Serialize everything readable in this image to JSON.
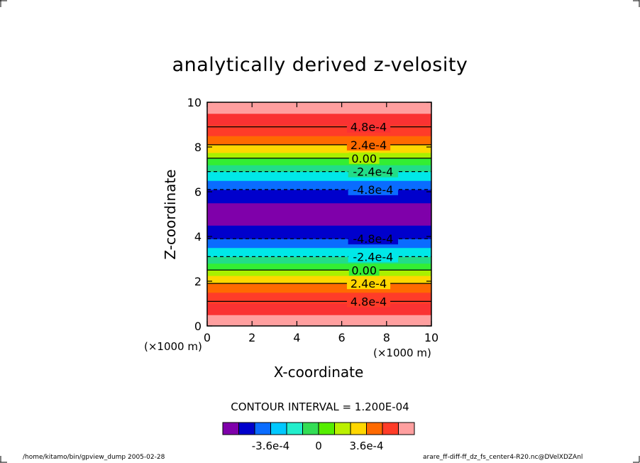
{
  "chart_data": {
    "type": "contour",
    "title": "analytically derived z-velosity",
    "xlabel": "X-coordinate",
    "ylabel": "Z-coordinate",
    "x_unit": "(×1000 m)",
    "y_unit": "(×1000 m)",
    "xlim": [
      0,
      10
    ],
    "ylim": [
      0,
      10
    ],
    "xticks": [
      "0",
      "2",
      "4",
      "6",
      "8",
      "10"
    ],
    "yticks": [
      "0",
      "2",
      "4",
      "6",
      "8",
      "10"
    ],
    "contour_interval_text": "CONTOUR INTERVAL = 1.200E-04",
    "bands": [
      {
        "z0": 0.0,
        "z1": 0.5,
        "color": "#ff9f9f"
      },
      {
        "z0": 0.5,
        "z1": 1.0,
        "color": "#fa3232"
      },
      {
        "z0": 1.0,
        "z1": 1.5,
        "color": "#ff3c28"
      },
      {
        "z0": 1.5,
        "z1": 1.9,
        "color": "#ff6a00"
      },
      {
        "z0": 1.9,
        "z1": 2.25,
        "color": "#ffd700"
      },
      {
        "z0": 2.25,
        "z1": 2.5,
        "color": "#aaf000"
      },
      {
        "z0": 2.5,
        "z1": 2.8,
        "color": "#33ee33"
      },
      {
        "z0": 2.8,
        "z1": 3.1,
        "color": "#22dd88"
      },
      {
        "z0": 3.1,
        "z1": 3.5,
        "color": "#00e8e8"
      },
      {
        "z0": 3.5,
        "z1": 3.9,
        "color": "#0a6cff"
      },
      {
        "z0": 3.9,
        "z1": 4.5,
        "color": "#0000cc"
      },
      {
        "z0": 4.5,
        "z1": 5.5,
        "color": "#7f00aa"
      },
      {
        "z0": 5.5,
        "z1": 6.1,
        "color": "#0000cc"
      },
      {
        "z0": 6.1,
        "z1": 6.5,
        "color": "#0a6cff"
      },
      {
        "z0": 6.5,
        "z1": 6.9,
        "color": "#00e8e8"
      },
      {
        "z0": 6.9,
        "z1": 7.2,
        "color": "#22dd88"
      },
      {
        "z0": 7.2,
        "z1": 7.5,
        "color": "#33ee33"
      },
      {
        "z0": 7.5,
        "z1": 7.75,
        "color": "#aaf000"
      },
      {
        "z0": 7.75,
        "z1": 8.1,
        "color": "#ffd700"
      },
      {
        "z0": 8.1,
        "z1": 8.5,
        "color": "#ff6a00"
      },
      {
        "z0": 8.5,
        "z1": 9.0,
        "color": "#ff3c28"
      },
      {
        "z0": 9.0,
        "z1": 9.5,
        "color": "#fa3232"
      },
      {
        "z0": 9.5,
        "z1": 10.0,
        "color": "#ff9f9f"
      }
    ],
    "contours": [
      {
        "z": 1.1,
        "dashed": false
      },
      {
        "z": 1.9,
        "dashed": false
      },
      {
        "z": 2.5,
        "dashed": false
      },
      {
        "z": 3.1,
        "dashed": true
      },
      {
        "z": 3.9,
        "dashed": true
      },
      {
        "z": 6.1,
        "dashed": true
      },
      {
        "z": 6.9,
        "dashed": true
      },
      {
        "z": 7.5,
        "dashed": false
      },
      {
        "z": 8.1,
        "dashed": false
      },
      {
        "z": 8.9,
        "dashed": false
      }
    ],
    "contour_labels": [
      {
        "text": "4.8e-4",
        "x": 7.2,
        "z": 8.9
      },
      {
        "text": "2.4e-4",
        "x": 7.2,
        "z": 8.1
      },
      {
        "text": "0.00",
        "x": 7.0,
        "z": 7.5
      },
      {
        "text": "-2.4e-4",
        "x": 7.4,
        "z": 6.9
      },
      {
        "text": "-4.8e-4",
        "x": 7.4,
        "z": 6.1
      },
      {
        "text": "-4.8e-4",
        "x": 7.4,
        "z": 3.9
      },
      {
        "text": "-2.4e-4",
        "x": 7.4,
        "z": 3.1
      },
      {
        "text": "0.00",
        "x": 7.0,
        "z": 2.5
      },
      {
        "text": "2.4e-4",
        "x": 7.2,
        "z": 1.9
      },
      {
        "text": "4.8e-4",
        "x": 7.2,
        "z": 1.1
      }
    ],
    "colorbar": {
      "colors": [
        "#7f00aa",
        "#0000cc",
        "#0a6cff",
        "#00c8ff",
        "#22eecc",
        "#33dd55",
        "#55ee00",
        "#bbf000",
        "#ffd700",
        "#ff6a00",
        "#ff3c28",
        "#ff9f9f"
      ],
      "ticks": [
        {
          "label": "-3.6e-4",
          "value": -0.00036
        },
        {
          "label": "0",
          "value": 0
        },
        {
          "label": "3.6e-4",
          "value": 0.00036
        }
      ],
      "range": [
        -0.00072,
        0.00072
      ]
    }
  },
  "footer": {
    "left": "/home/kitamo/bin/gpview_dump  2005-02-28",
    "right": "arare_ff-diff-ff_dz_fs_center4-R20.nc@DVelXDZAnl"
  }
}
